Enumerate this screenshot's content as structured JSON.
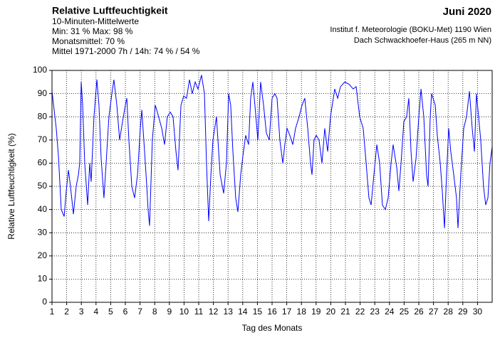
{
  "chart_data": {
    "type": "line",
    "title": "Relative Luftfeuchtigkeit",
    "subtitle": "10-Minuten-Mittelwerte",
    "stats": [
      "Min:  31 %   Max:  98 %",
      "Monatsmittel:  70 %",
      "Mittel 1971-2000 7h / 14h:  74 % / 54 %"
    ],
    "period": "Juni 2020",
    "source": [
      "Institut f. Meteorologie (BOKU-Met) 1190 Wien",
      "Dach Schwackhoefer-Haus (265 m NN)"
    ],
    "xlabel": "Tag des Monats",
    "ylabel": "Relative Luftfeuchtigkeit (%)",
    "xlim": [
      1,
      31
    ],
    "ylim": [
      0,
      100
    ],
    "xticks": [
      1,
      2,
      3,
      4,
      5,
      6,
      7,
      8,
      9,
      10,
      11,
      12,
      13,
      14,
      15,
      16,
      17,
      18,
      19,
      20,
      21,
      22,
      23,
      24,
      25,
      26,
      27,
      28,
      29,
      30
    ],
    "yticks": [
      0,
      10,
      20,
      30,
      40,
      50,
      60,
      70,
      80,
      90,
      100
    ],
    "grid": true,
    "series": [
      {
        "name": "Relative Luftfeuchtigkeit",
        "color": "#0000ff",
        "x": [
          1.0,
          1.29,
          1.44,
          1.63,
          1.83,
          1.97,
          2.12,
          2.26,
          2.46,
          2.65,
          2.8,
          2.89,
          2.99,
          3.09,
          3.23,
          3.43,
          3.57,
          3.67,
          3.86,
          4.06,
          4.2,
          4.35,
          4.54,
          4.69,
          4.88,
          5.08,
          5.22,
          5.42,
          5.61,
          5.81,
          6.0,
          6.1,
          6.24,
          6.44,
          6.63,
          6.83,
          7.02,
          7.12,
          7.31,
          7.46,
          7.55,
          7.65,
          7.84,
          8.04,
          8.18,
          8.48,
          8.67,
          8.86,
          9.06,
          9.25,
          9.45,
          9.59,
          9.79,
          9.98,
          10.17,
          10.37,
          10.56,
          10.76,
          10.95,
          11.19,
          11.39,
          11.53,
          11.68,
          11.83,
          11.97,
          12.21,
          12.46,
          12.7,
          12.89,
          13.04,
          13.18,
          13.33,
          13.52,
          13.67,
          13.86,
          14.01,
          14.2,
          14.4,
          14.54,
          14.69,
          14.83,
          15.03,
          15.22,
          15.42,
          15.61,
          15.81,
          16.0,
          16.19,
          16.34,
          16.53,
          16.73,
          16.87,
          17.02,
          17.21,
          17.41,
          17.6,
          17.84,
          18.04,
          18.23,
          18.43,
          18.62,
          18.72,
          18.86,
          19.01,
          19.2,
          19.4,
          19.59,
          19.79,
          19.98,
          20.27,
          20.47,
          20.66,
          20.96,
          21.25,
          21.53,
          21.73,
          21.97,
          22.21,
          22.41,
          22.6,
          22.75,
          22.94,
          23.14,
          23.33,
          23.52,
          23.72,
          23.91,
          24.11,
          24.25,
          24.5,
          24.64,
          24.79,
          24.98,
          25.17,
          25.32,
          25.47,
          25.61,
          25.81,
          26.0,
          26.15,
          26.34,
          26.53,
          26.63,
          26.78,
          26.87,
          27.12,
          27.26,
          27.46,
          27.6,
          27.75,
          27.89,
          28.04,
          28.18,
          28.38,
          28.57,
          28.67,
          28.86,
          29.06,
          29.25,
          29.45,
          29.64,
          29.79,
          29.93,
          30.22,
          30.41,
          30.56,
          30.71,
          30.85,
          31.0
        ],
        "values": [
          91,
          75,
          63,
          40,
          37,
          48,
          57,
          50,
          38,
          50,
          55,
          60,
          95,
          85,
          60,
          42,
          60,
          52,
          80,
          96,
          85,
          62,
          45,
          60,
          80,
          90,
          96,
          85,
          70,
          78,
          85,
          88,
          70,
          50,
          45,
          55,
          75,
          83,
          65,
          50,
          40,
          33,
          70,
          85,
          82,
          75,
          68,
          80,
          82,
          80,
          65,
          57,
          85,
          89,
          88,
          96,
          90,
          95,
          92,
          98,
          90,
          60,
          35,
          55,
          70,
          80,
          55,
          47,
          60,
          90,
          85,
          65,
          45,
          39,
          55,
          63,
          72,
          68,
          88,
          95,
          85,
          70,
          95,
          85,
          73,
          70,
          88,
          90,
          88,
          70,
          60,
          68,
          75,
          72,
          68,
          75,
          80,
          85,
          88,
          75,
          60,
          55,
          70,
          72,
          70,
          60,
          75,
          65,
          80,
          92,
          88,
          93,
          95,
          94,
          92,
          93,
          80,
          75,
          60,
          45,
          42,
          55,
          68,
          60,
          42,
          40,
          45,
          60,
          68,
          58,
          48,
          60,
          78,
          80,
          88,
          65,
          52,
          62,
          80,
          92,
          80,
          55,
          50,
          80,
          90,
          85,
          72,
          60,
          48,
          32,
          55,
          75,
          65,
          55,
          45,
          32,
          55,
          75,
          80,
          91,
          75,
          65,
          90,
          70,
          50,
          42,
          45,
          60,
          67
        ]
      }
    ]
  }
}
